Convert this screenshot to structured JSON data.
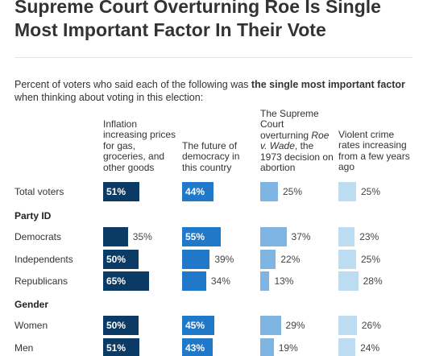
{
  "chart_data": {
    "type": "bar",
    "title": "Supreme Court Overturning Roe Is Single Most Important Factor In Their Vote",
    "subtitle": {
      "prefix": "Percent of voters who said each of the following was ",
      "bold": "the single most important factor",
      "line2": "when thinking about voting in this election:"
    },
    "value_suffix": "%",
    "columns": [
      {
        "key": "inflation",
        "lines": [
          "Inflation",
          "increasing prices",
          "for gas,",
          "groceries, and",
          "other goods"
        ],
        "color": "#0b3a64",
        "label_color": "#ffffff"
      },
      {
        "key": "democracy",
        "lines": [
          "The future of",
          "democracy in",
          "this country"
        ],
        "color": "#1f78c8",
        "label_color": "#ffffff"
      },
      {
        "key": "roe",
        "lines": [
          "The Supreme",
          "Court",
          "overturning |Roe|",
          "|v. Wade|, the",
          "1973 decision on",
          "abortion"
        ],
        "color": "#7fb5e2",
        "label_color": "#0b3a64"
      },
      {
        "key": "crime",
        "lines": [
          "Violent crime",
          "rates increasing",
          "from a few years",
          "ago"
        ],
        "color": "#bcdcf1",
        "label_color": "#0b3a64"
      }
    ],
    "rows": [
      {
        "label": "Total voters",
        "values": [
          51,
          44,
          25,
          25
        ]
      },
      {
        "label": "Party ID",
        "group": true
      },
      {
        "label": "Democrats",
        "values": [
          35,
          55,
          37,
          23
        ]
      },
      {
        "label": "Independents",
        "values": [
          50,
          39,
          22,
          25
        ]
      },
      {
        "label": "Republicans",
        "values": [
          65,
          34,
          13,
          28
        ]
      },
      {
        "label": "Gender",
        "group": true
      },
      {
        "label": "Women",
        "values": [
          50,
          45,
          29,
          26
        ]
      },
      {
        "label": "Men",
        "values": [
          51,
          43,
          19,
          24
        ]
      }
    ]
  }
}
